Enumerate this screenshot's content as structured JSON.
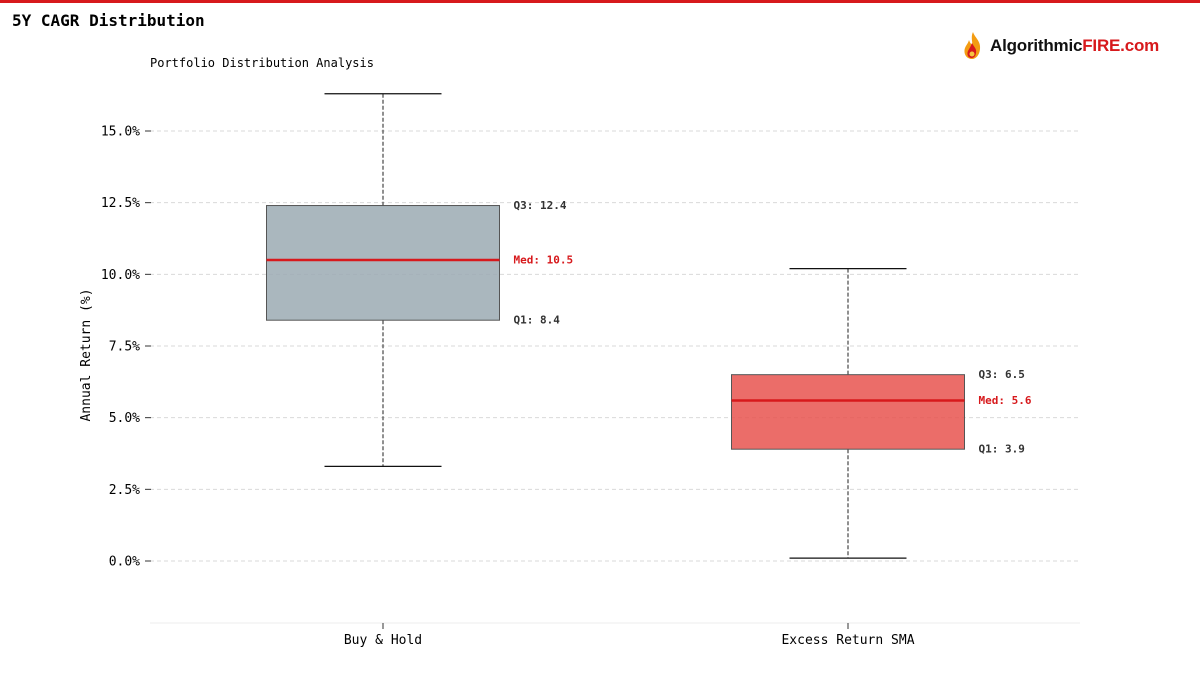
{
  "header": {
    "title": "5Y CAGR Distribution",
    "accent_color": "#d7191c"
  },
  "logo": {
    "text_part1": "Algorithmic",
    "text_part2": "FIRE.com",
    "icon": "flame-icon"
  },
  "chart_data": {
    "type": "box",
    "title": "Portfolio Distribution Analysis",
    "xlabel": "",
    "ylabel": "Annual Return (%)",
    "categories": [
      "Buy & Hold",
      "Excess Return SMA"
    ],
    "y_ticks": [
      "0.0%",
      "2.5%",
      "5.0%",
      "7.5%",
      "10.0%",
      "12.5%",
      "15.0%"
    ],
    "y_tick_values": [
      0,
      2.5,
      5,
      7.5,
      10,
      12.5,
      15
    ],
    "ylim": [
      -2.2,
      16.4
    ],
    "grid": true,
    "boxes": [
      {
        "name": "Buy & Hold",
        "whisker_low": 3.3,
        "q1": 8.4,
        "median": 10.5,
        "q3": 12.4,
        "whisker_high": 16.3,
        "q1_label": "Q1: 8.4",
        "median_label": "Med: 10.5",
        "q3_label": "Q3: 12.4",
        "color": "#9baab3"
      },
      {
        "name": "Excess Return SMA",
        "whisker_low": 0.1,
        "q1": 3.9,
        "median": 5.6,
        "q3": 6.5,
        "whisker_high": 10.2,
        "q1_label": "Q1: 3.9",
        "median_label": "Med: 5.6",
        "q3_label": "Q3: 6.5",
        "color": "#e8544f"
      }
    ],
    "median_color": "#d7191c"
  }
}
